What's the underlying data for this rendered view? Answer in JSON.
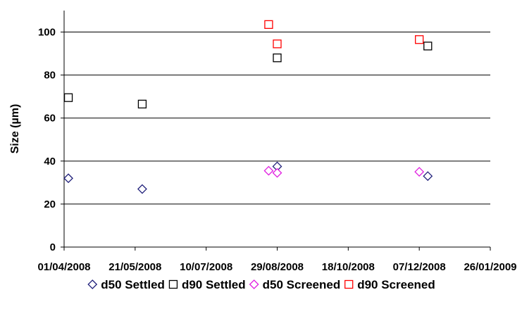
{
  "chart_data": {
    "type": "scatter",
    "title": "",
    "xlabel": "",
    "ylabel": "Size (µm)",
    "x_axis": {
      "kind": "date",
      "min": "2008-04-01",
      "max": "2009-01-26",
      "tick_labels": [
        "01/04/2008",
        "21/05/2008",
        "10/07/2008",
        "29/08/2008",
        "18/10/2008",
        "07/12/2008",
        "26/01/2009"
      ]
    },
    "y_axis": {
      "min": 0,
      "max": 110,
      "tick_values": [
        0,
        20,
        40,
        60,
        80,
        100
      ],
      "tick_labels": [
        "0",
        "20",
        "40",
        "60",
        "80",
        "100"
      ]
    },
    "grid": "horizontal",
    "legend_position": "bottom",
    "series": [
      {
        "name": "d50 Settled",
        "marker": "diamond",
        "color": "#1f1f7a",
        "points": [
          {
            "x": "2008-04-04",
            "y": 32
          },
          {
            "x": "2008-05-26",
            "y": 27
          },
          {
            "x": "2008-08-29",
            "y": 37.5
          },
          {
            "x": "2008-12-13",
            "y": 33
          }
        ]
      },
      {
        "name": "d90 Settled",
        "marker": "square",
        "color": "#000000",
        "points": [
          {
            "x": "2008-04-04",
            "y": 69.5
          },
          {
            "x": "2008-05-26",
            "y": 66.5
          },
          {
            "x": "2008-08-29",
            "y": 88
          },
          {
            "x": "2008-12-13",
            "y": 93.5
          }
        ]
      },
      {
        "name": "d50 Screened",
        "marker": "diamond",
        "color": "#e020e0",
        "points": [
          {
            "x": "2008-08-23",
            "y": 35.5
          },
          {
            "x": "2008-08-29",
            "y": 34.5
          },
          {
            "x": "2008-12-07",
            "y": 35
          }
        ]
      },
      {
        "name": "d90 Screened",
        "marker": "square",
        "color": "#ff0000",
        "points": [
          {
            "x": "2008-08-23",
            "y": 103.5
          },
          {
            "x": "2008-08-29",
            "y": 94.5
          },
          {
            "x": "2008-12-07",
            "y": 96.5
          }
        ]
      }
    ]
  }
}
